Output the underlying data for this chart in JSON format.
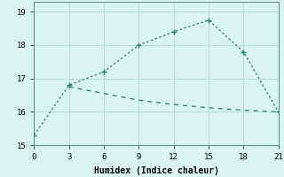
{
  "line1_x": [
    0,
    3,
    6,
    9,
    12,
    15,
    18,
    21
  ],
  "line1_y": [
    15.3,
    16.8,
    17.2,
    18.0,
    18.4,
    18.75,
    17.8,
    16.0
  ],
  "line2_x": [
    3,
    6,
    9,
    12,
    15,
    18,
    21
  ],
  "line2_y": [
    16.75,
    16.55,
    16.35,
    16.22,
    16.12,
    16.05,
    16.0
  ],
  "line_color": "#2e7d6e",
  "bg_color": "#d8f5f0",
  "grid_color": "#b8ddd8",
  "xlabel": "Humidex (Indice chaleur)",
  "xlim": [
    0,
    21
  ],
  "ylim": [
    15,
    19.3
  ],
  "xticks": [
    0,
    3,
    6,
    9,
    12,
    15,
    18,
    21
  ],
  "yticks": [
    15,
    16,
    17,
    18,
    19
  ],
  "marker": "+",
  "markersize": 4,
  "linewidth": 0.9,
  "tick_fontsize": 6.5,
  "xlabel_fontsize": 7
}
